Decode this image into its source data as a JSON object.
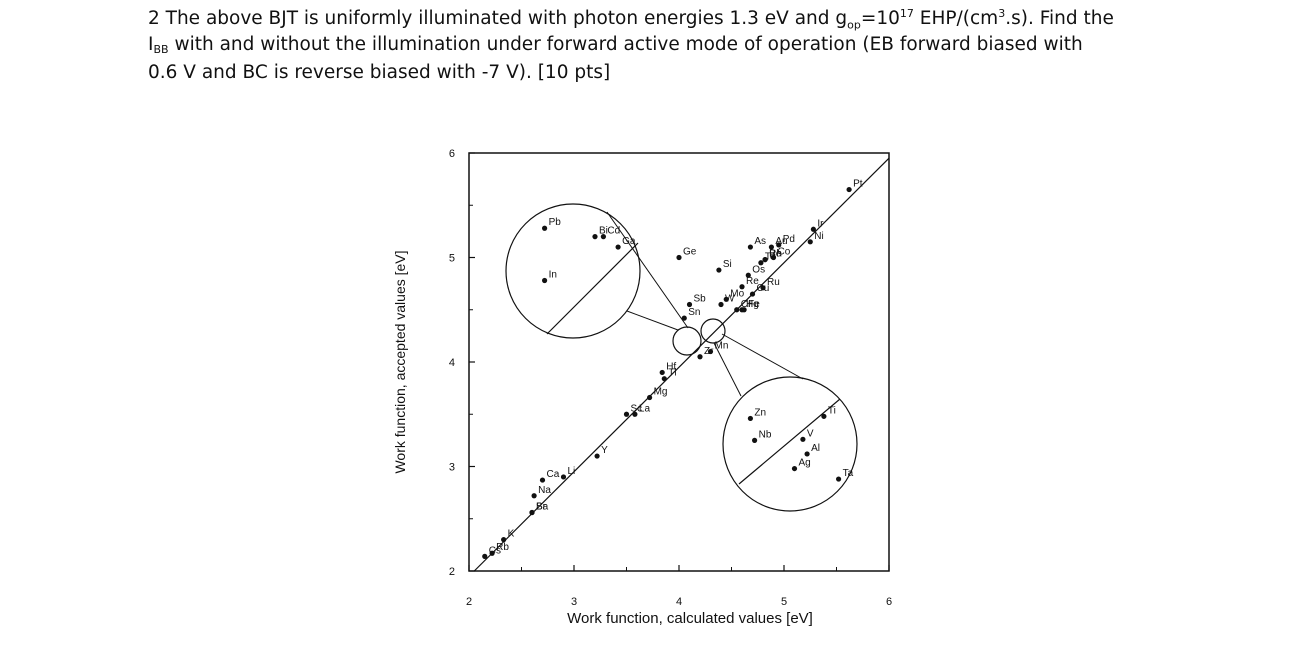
{
  "problem": {
    "part1": "2 The above BJT  is uniformly illuminated with photon energies 1.3 eV and g",
    "g_sub": "op",
    "part2": "=10",
    "exp": "17",
    "part3": " EHP/(cm",
    "cube": "3",
    "part4": ".s). Find the",
    "i_main": "I",
    "i_sub": "BB",
    "line2": " with and without the illumination under forward active mode of operation (EB forward biased with",
    "line3": "0.6 V and BC is reverse biased with -7 V).  [10 pts]"
  },
  "chart_data": {
    "type": "scatter",
    "title": "",
    "xlabel": "Work function, calculated values [eV]",
    "ylabel": "Work function, accepted values [eV]",
    "xlim": [
      2,
      6
    ],
    "ylim": [
      2,
      6
    ],
    "xticks": [
      "2",
      "3",
      "4",
      "5",
      "6"
    ],
    "yticks": [
      "2",
      "3",
      "4",
      "5",
      "6"
    ],
    "diagonal": true,
    "points": [
      {
        "label": "Cs",
        "x": 2.15,
        "y": 2.14
      },
      {
        "label": "K",
        "x": 2.33,
        "y": 2.3
      },
      {
        "label": "Rb",
        "x": 2.22,
        "y": 2.17
      },
      {
        "label": "Na",
        "x": 2.62,
        "y": 2.72
      },
      {
        "label": "Ba",
        "x": 2.6,
        "y": 2.56
      },
      {
        "label": "Sr",
        "x": 2.6,
        "y": 2.56
      },
      {
        "label": "Ca",
        "x": 2.7,
        "y": 2.87
      },
      {
        "label": "Li",
        "x": 2.9,
        "y": 2.9
      },
      {
        "label": "Y",
        "x": 3.22,
        "y": 3.1
      },
      {
        "label": "Sc",
        "x": 3.5,
        "y": 3.5
      },
      {
        "label": "La",
        "x": 3.58,
        "y": 3.5
      },
      {
        "label": "Mg",
        "x": 3.72,
        "y": 3.66
      },
      {
        "label": "Hf",
        "x": 3.84,
        "y": 3.9
      },
      {
        "label": "Tl",
        "x": 3.86,
        "y": 3.84
      },
      {
        "label": "Zr",
        "x": 4.2,
        "y": 4.05
      },
      {
        "label": "Mn",
        "x": 4.3,
        "y": 4.1
      },
      {
        "label": "Cr",
        "x": 4.55,
        "y": 4.5
      },
      {
        "label": "Hg",
        "x": 4.6,
        "y": 4.5
      },
      {
        "label": "Fe",
        "x": 4.62,
        "y": 4.5
      },
      {
        "label": "Sn",
        "x": 4.05,
        "y": 4.42
      },
      {
        "label": "Sb",
        "x": 4.1,
        "y": 4.55
      },
      {
        "label": "W",
        "x": 4.4,
        "y": 4.55
      },
      {
        "label": "Mo",
        "x": 4.45,
        "y": 4.6
      },
      {
        "label": "Re",
        "x": 4.6,
        "y": 4.72
      },
      {
        "label": "Os",
        "x": 4.66,
        "y": 4.83
      },
      {
        "label": "Cu",
        "x": 4.7,
        "y": 4.65
      },
      {
        "label": "Ru",
        "x": 4.8,
        "y": 4.71
      },
      {
        "label": "Be",
        "x": 4.82,
        "y": 4.98
      },
      {
        "label": "Te",
        "x": 4.78,
        "y": 4.95
      },
      {
        "label": "Co",
        "x": 4.9,
        "y": 5.0
      },
      {
        "label": "Rh",
        "x": 4.82,
        "y": 4.98
      },
      {
        "label": "Pd",
        "x": 4.95,
        "y": 5.12
      },
      {
        "label": "Au",
        "x": 4.88,
        "y": 5.1
      },
      {
        "label": "As",
        "x": 4.68,
        "y": 5.1
      },
      {
        "label": "Ni",
        "x": 5.25,
        "y": 5.15
      },
      {
        "label": "Ir",
        "x": 5.28,
        "y": 5.27
      },
      {
        "label": "Pt",
        "x": 5.62,
        "y": 5.65
      },
      {
        "label": "Si",
        "x": 4.38,
        "y": 4.88
      },
      {
        "label": "Ge",
        "x": 4.0,
        "y": 5.0
      },
      {
        "label": "Pb",
        "x": 2.72,
        "y": 5.28
      },
      {
        "label": "In",
        "x": 2.72,
        "y": 4.78
      },
      {
        "label": "Bi",
        "x": 3.2,
        "y": 5.2
      },
      {
        "label": "Cd",
        "x": 3.28,
        "y": 5.2
      },
      {
        "label": "Ga",
        "x": 3.42,
        "y": 5.1
      },
      {
        "label": "Zn",
        "x": 4.68,
        "y": 3.46
      },
      {
        "label": "Nb",
        "x": 4.72,
        "y": 3.25
      },
      {
        "label": "V",
        "x": 5.18,
        "y": 3.26
      },
      {
        "label": "Al",
        "x": 5.22,
        "y": 3.12
      },
      {
        "label": "Ag",
        "x": 5.1,
        "y": 2.98
      },
      {
        "label": "Ti",
        "x": 5.38,
        "y": 3.48
      },
      {
        "label": "Ta",
        "x": 5.52,
        "y": 2.88
      }
    ]
  }
}
